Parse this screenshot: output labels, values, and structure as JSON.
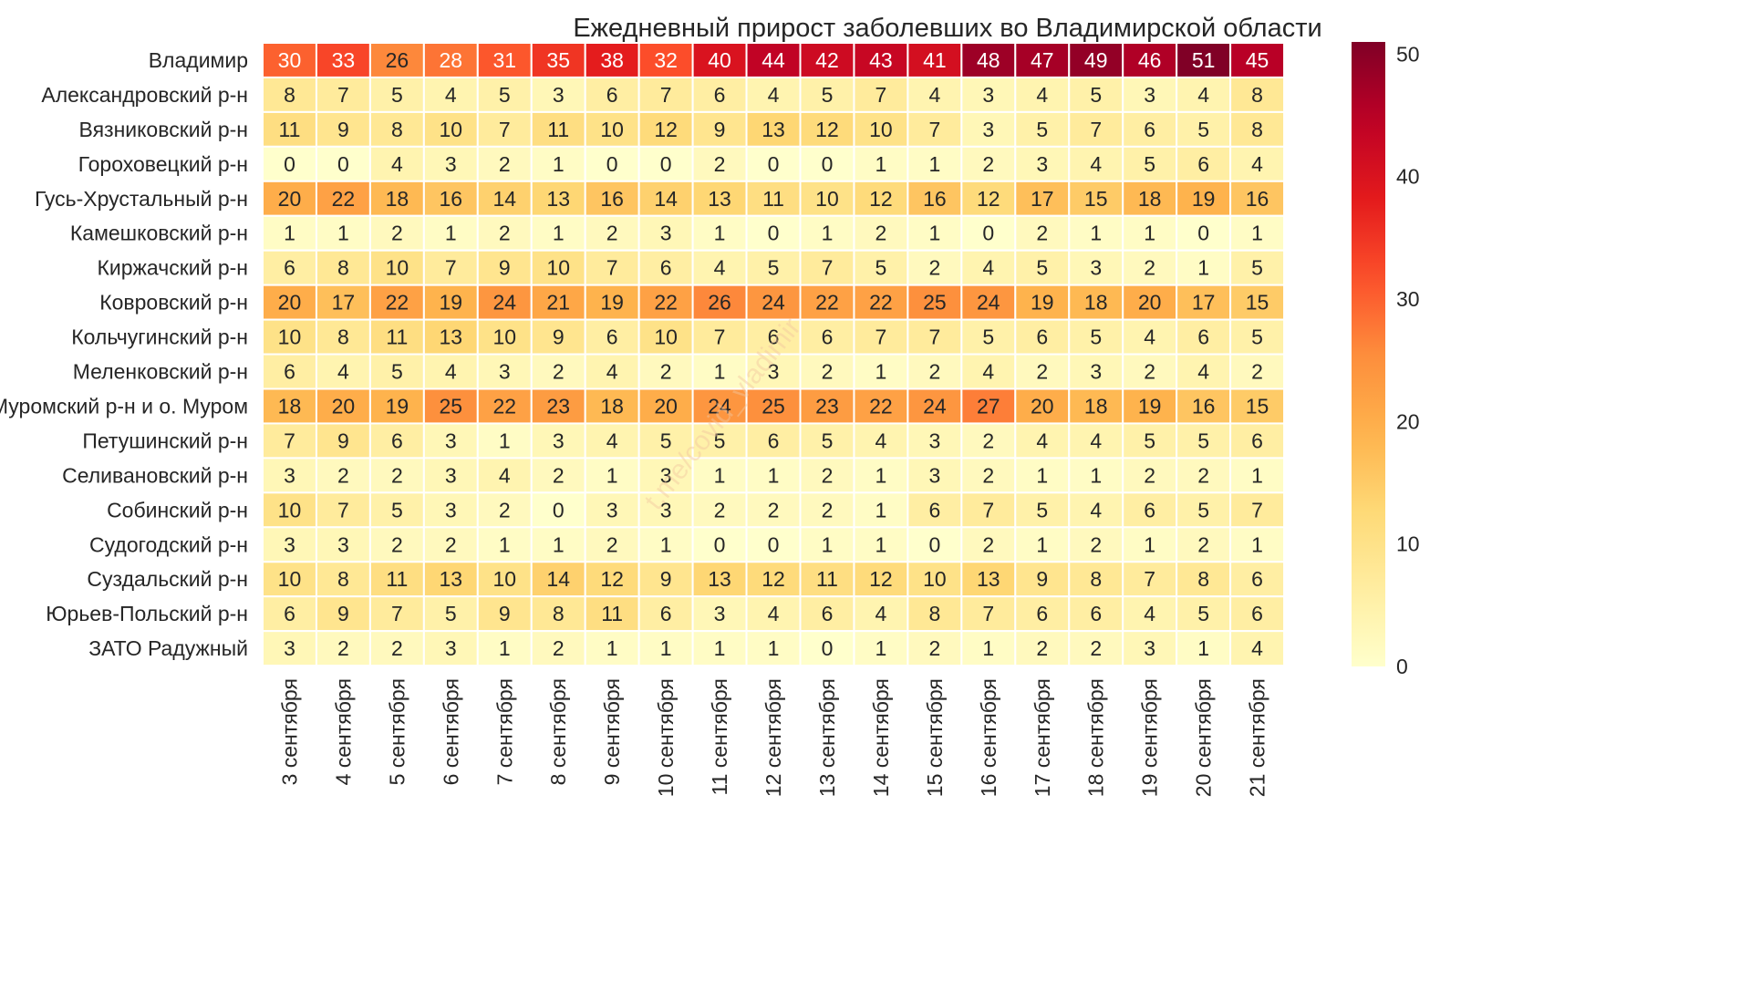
{
  "chart_data": {
    "type": "heatmap",
    "title": "Ежедневный прирост заболевших во Владимирской области",
    "rows": [
      "Владимир",
      "Александровский р-н",
      "Вязниковский р-н",
      "Гороховецкий р-н",
      "Гусь-Хрустальный р-н",
      "Камешковский р-н",
      "Киржачский р-н",
      "Ковровский р-н",
      "Кольчугинский р-н",
      "Меленковский р-н",
      "Муромский р-н и о. Муром",
      "Петушинский р-н",
      "Селивановский р-н",
      "Собинский р-н",
      "Судогодский р-н",
      "Суздальский р-н",
      "Юрьев-Польский р-н",
      "ЗАТО Радужный"
    ],
    "columns": [
      "3 сентября",
      "4 сентября",
      "5 сентября",
      "6 сентября",
      "7 сентября",
      "8 сентября",
      "9 сентября",
      "10 сентября",
      "11 сентября",
      "12 сентября",
      "13 сентября",
      "14 сентября",
      "15 сентября",
      "16 сентября",
      "17 сентября",
      "18 сентября",
      "19 сентября",
      "20 сентября",
      "21 сентября"
    ],
    "values": [
      [
        30,
        33,
        26,
        28,
        31,
        35,
        38,
        32,
        40,
        44,
        42,
        43,
        41,
        48,
        47,
        49,
        46,
        51,
        45
      ],
      [
        8,
        7,
        5,
        4,
        5,
        3,
        6,
        7,
        6,
        4,
        5,
        7,
        4,
        3,
        4,
        5,
        3,
        4,
        8
      ],
      [
        11,
        9,
        8,
        10,
        7,
        11,
        10,
        12,
        9,
        13,
        12,
        10,
        7,
        3,
        5,
        7,
        6,
        5,
        8
      ],
      [
        0,
        0,
        4,
        3,
        2,
        1,
        0,
        0,
        2,
        0,
        0,
        1,
        1,
        2,
        3,
        4,
        5,
        6,
        4
      ],
      [
        20,
        22,
        18,
        16,
        14,
        13,
        16,
        14,
        13,
        11,
        10,
        12,
        16,
        12,
        17,
        15,
        18,
        19,
        16
      ],
      [
        1,
        1,
        2,
        1,
        2,
        1,
        2,
        3,
        1,
        0,
        1,
        2,
        1,
        0,
        2,
        1,
        1,
        0,
        1
      ],
      [
        6,
        8,
        10,
        7,
        9,
        10,
        7,
        6,
        4,
        5,
        7,
        5,
        2,
        4,
        5,
        3,
        2,
        1,
        5
      ],
      [
        20,
        17,
        22,
        19,
        24,
        21,
        19,
        22,
        26,
        24,
        22,
        22,
        25,
        24,
        19,
        18,
        20,
        17,
        15
      ],
      [
        10,
        8,
        11,
        13,
        10,
        9,
        6,
        10,
        7,
        6,
        6,
        7,
        7,
        5,
        6,
        5,
        4,
        6,
        5
      ],
      [
        6,
        4,
        5,
        4,
        3,
        2,
        4,
        2,
        1,
        3,
        2,
        1,
        2,
        4,
        2,
        3,
        2,
        4,
        2
      ],
      [
        18,
        20,
        19,
        25,
        22,
        23,
        18,
        20,
        24,
        25,
        23,
        22,
        24,
        27,
        20,
        18,
        19,
        16,
        15
      ],
      [
        7,
        9,
        6,
        3,
        1,
        3,
        4,
        5,
        5,
        6,
        5,
        4,
        3,
        2,
        4,
        4,
        5,
        5,
        6
      ],
      [
        3,
        2,
        2,
        3,
        4,
        2,
        1,
        3,
        1,
        1,
        2,
        1,
        3,
        2,
        1,
        1,
        2,
        2,
        1
      ],
      [
        10,
        7,
        5,
        3,
        2,
        0,
        3,
        3,
        2,
        2,
        2,
        1,
        6,
        7,
        5,
        4,
        6,
        5,
        7
      ],
      [
        3,
        3,
        2,
        2,
        1,
        1,
        2,
        1,
        0,
        0,
        1,
        1,
        0,
        2,
        1,
        2,
        1,
        2,
        1
      ],
      [
        10,
        8,
        11,
        13,
        10,
        14,
        12,
        9,
        13,
        12,
        11,
        12,
        10,
        13,
        9,
        8,
        7,
        8,
        6
      ],
      [
        6,
        9,
        7,
        5,
        9,
        8,
        11,
        6,
        3,
        4,
        6,
        4,
        8,
        7,
        6,
        6,
        4,
        5,
        6
      ],
      [
        3,
        2,
        2,
        3,
        1,
        2,
        1,
        1,
        1,
        1,
        0,
        1,
        2,
        1,
        2,
        2,
        3,
        1,
        4
      ]
    ],
    "colorbar": {
      "min": 0,
      "max": 51,
      "ticks": [
        0,
        10,
        20,
        30,
        40,
        50
      ],
      "colormap": "YlOrRd"
    },
    "watermark": "t.me/covid_vladimir"
  }
}
